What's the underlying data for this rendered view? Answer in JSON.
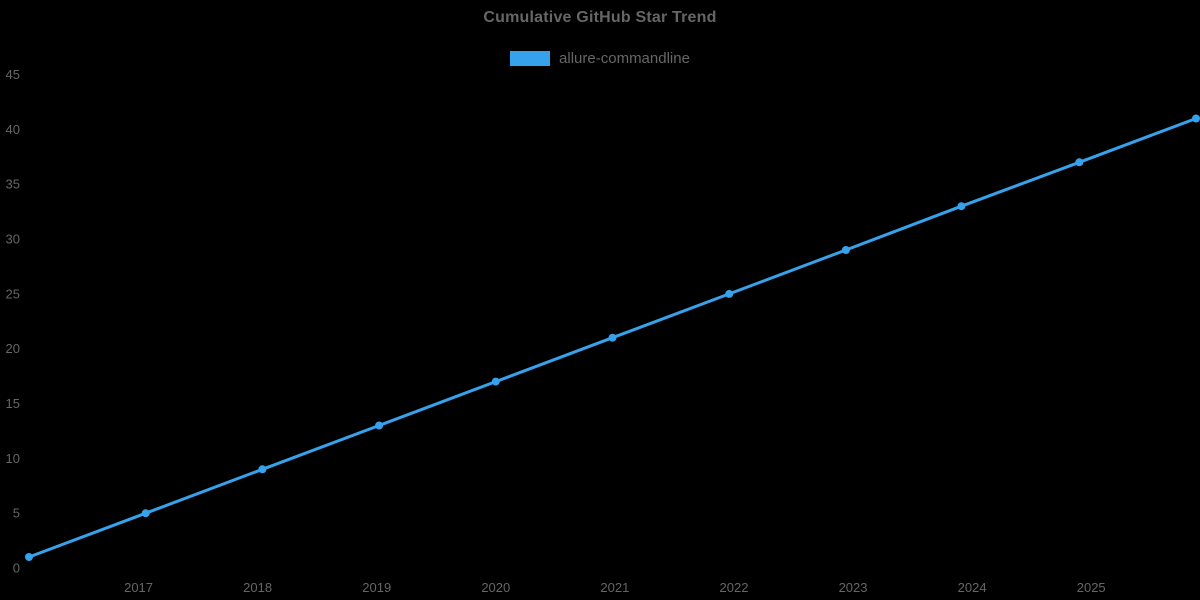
{
  "title": "Cumulative GitHub Star Trend",
  "legend": {
    "label": "allure-commandline",
    "swatch_color": "#36a2eb"
  },
  "colors": {
    "background": "#000000",
    "text": "#666666",
    "line": "#36a2eb"
  },
  "chart_data": {
    "type": "line",
    "title": "Cumulative GitHub Star Trend",
    "xlabel": "",
    "ylabel": "",
    "legend_position": "top",
    "grid": false,
    "xlim": [
      2016.08,
      2025.88
    ],
    "ylim": [
      0,
      45
    ],
    "x_ticks": [
      2017,
      2018,
      2019,
      2020,
      2021,
      2022,
      2023,
      2024,
      2025
    ],
    "y_ticks": [
      0,
      5,
      10,
      15,
      20,
      25,
      30,
      35,
      40,
      45
    ],
    "series": [
      {
        "name": "allure-commandline",
        "color": "#36a2eb",
        "x": [
          2016.08,
          2017.06,
          2018.04,
          2019.02,
          2020.0,
          2020.98,
          2021.96,
          2022.94,
          2023.91,
          2024.9,
          2025.88
        ],
        "values": [
          1,
          5,
          9,
          13,
          17,
          21,
          25,
          29,
          33,
          37,
          41
        ]
      }
    ]
  }
}
